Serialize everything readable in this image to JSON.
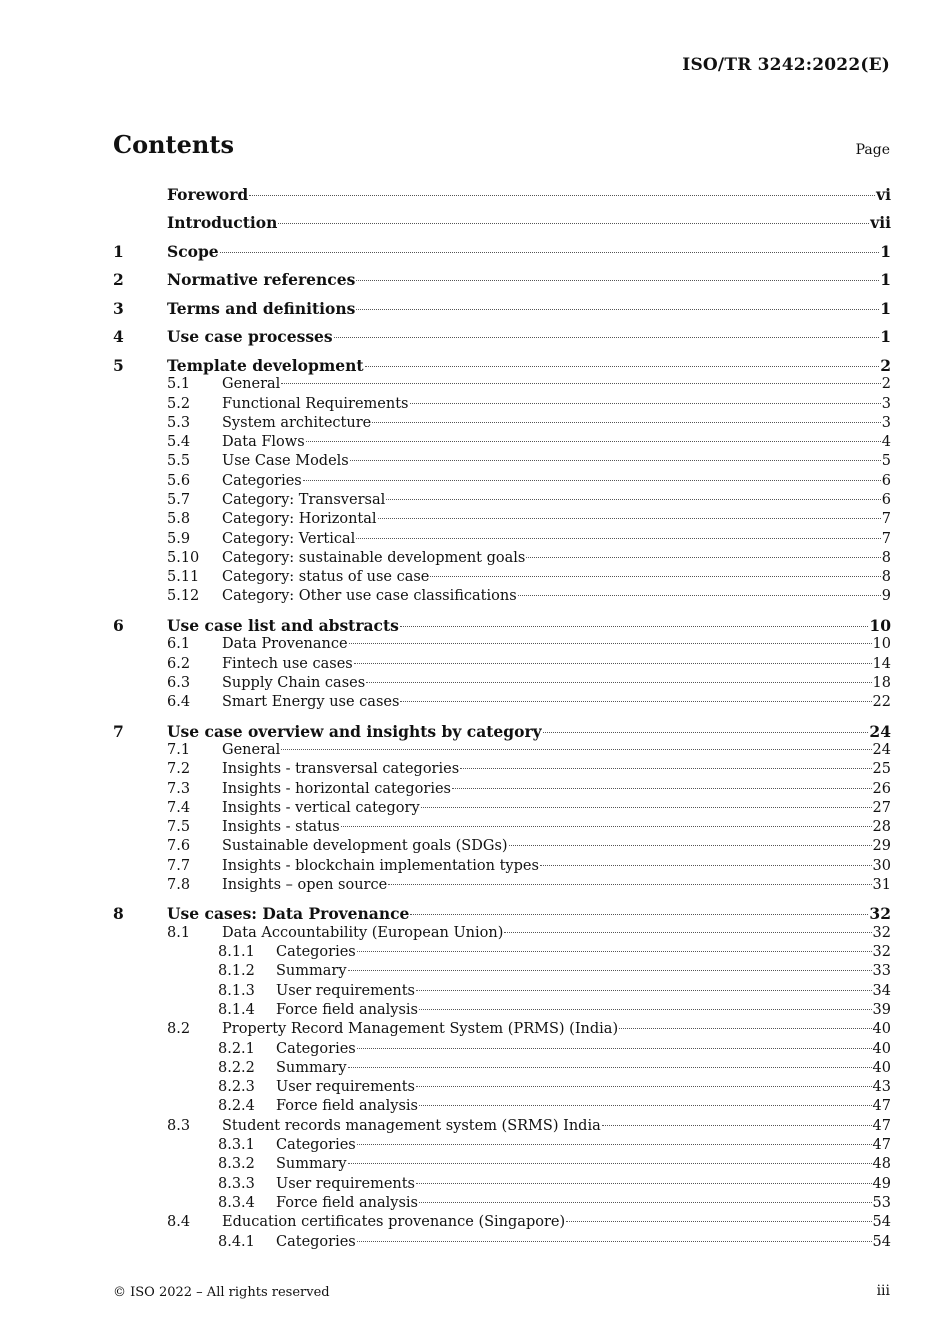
{
  "header": {
    "doc_id": "ISO/TR 3242:2022(E)"
  },
  "contents": {
    "title": "Contents",
    "page_label": "Page",
    "entries": [
      {
        "level": 0,
        "num": "",
        "title": "Foreword",
        "page": "vi"
      },
      {
        "level": 0,
        "num": "",
        "title": "Introduction",
        "page": "vii"
      },
      {
        "level": 0,
        "num": "1",
        "title": "Scope",
        "page": "1"
      },
      {
        "level": 0,
        "num": "2",
        "title": "Normative references",
        "page": "1"
      },
      {
        "level": 0,
        "num": "3",
        "title": "Terms and definitions",
        "page": "1"
      },
      {
        "level": 0,
        "num": "4",
        "title": "Use case processes",
        "page": "1"
      },
      {
        "level": 0,
        "num": "5",
        "title": "Template development",
        "page": "2"
      },
      {
        "level": 1,
        "num": "5.1",
        "title": "General",
        "page": "2"
      },
      {
        "level": 1,
        "num": "5.2",
        "title": "Functional Requirements",
        "page": "3"
      },
      {
        "level": 1,
        "num": "5.3",
        "title": "System architecture",
        "page": "3"
      },
      {
        "level": 1,
        "num": "5.4",
        "title": "Data Flows",
        "page": "4"
      },
      {
        "level": 1,
        "num": "5.5",
        "title": "Use Case Models",
        "page": "5"
      },
      {
        "level": 1,
        "num": "5.6",
        "title": "Categories",
        "page": "6"
      },
      {
        "level": 1,
        "num": "5.7",
        "title": "Category: Transversal",
        "page": "6"
      },
      {
        "level": 1,
        "num": "5.8",
        "title": "Category: Horizontal",
        "page": "7"
      },
      {
        "level": 1,
        "num": "5.9",
        "title": "Category: Vertical",
        "page": "7"
      },
      {
        "level": 1,
        "num": "5.10",
        "title": "Category: sustainable development goals",
        "page": "8"
      },
      {
        "level": 1,
        "num": "5.11",
        "title": "Category: status of use case",
        "page": "8"
      },
      {
        "level": 1,
        "num": "5.12",
        "title": "Category: Other use case classifications",
        "page": "9"
      },
      {
        "level": 0,
        "num": "6",
        "title": "Use case list and abstracts",
        "page": "10"
      },
      {
        "level": 1,
        "num": "6.1",
        "title": "Data Provenance",
        "page": "10"
      },
      {
        "level": 1,
        "num": "6.2",
        "title": "Fintech use cases",
        "page": "14"
      },
      {
        "level": 1,
        "num": "6.3",
        "title": "Supply Chain cases",
        "page": "18"
      },
      {
        "level": 1,
        "num": "6.4",
        "title": "Smart Energy use cases",
        "page": "22"
      },
      {
        "level": 0,
        "num": "7",
        "title": "Use case overview and insights by category",
        "page": "24"
      },
      {
        "level": 1,
        "num": "7.1",
        "title": "General",
        "page": "24"
      },
      {
        "level": 1,
        "num": "7.2",
        "title": "Insights - transversal categories",
        "page": "25"
      },
      {
        "level": 1,
        "num": "7.3",
        "title": "Insights - horizontal categories",
        "page": "26"
      },
      {
        "level": 1,
        "num": "7.4",
        "title": "Insights - vertical category",
        "page": "27"
      },
      {
        "level": 1,
        "num": "7.5",
        "title": "Insights - status",
        "page": "28"
      },
      {
        "level": 1,
        "num": "7.6",
        "title": "Sustainable development goals (SDGs)",
        "page": "29"
      },
      {
        "level": 1,
        "num": "7.7",
        "title": "Insights - blockchain implementation types",
        "page": "30"
      },
      {
        "level": 1,
        "num": "7.8",
        "title": "Insights – open source",
        "page": "31"
      },
      {
        "level": 0,
        "num": "8",
        "title": "Use cases: Data Provenance",
        "page": "32"
      },
      {
        "level": 1,
        "num": "8.1",
        "title": "Data Accountability (European Union)",
        "page": "32"
      },
      {
        "level": 2,
        "num": "8.1.1",
        "title": "Categories",
        "page": "32"
      },
      {
        "level": 2,
        "num": "8.1.2",
        "title": "Summary",
        "page": "33"
      },
      {
        "level": 2,
        "num": "8.1.3",
        "title": "User requirements",
        "page": "34"
      },
      {
        "level": 2,
        "num": "8.1.4",
        "title": "Force field analysis",
        "page": "39"
      },
      {
        "level": 1,
        "num": "8.2",
        "title": "Property Record Management System (PRMS) (India)",
        "page": "40"
      },
      {
        "level": 2,
        "num": "8.2.1",
        "title": "Categories",
        "page": "40"
      },
      {
        "level": 2,
        "num": "8.2.2",
        "title": "Summary",
        "page": "40"
      },
      {
        "level": 2,
        "num": "8.2.3",
        "title": "User requirements",
        "page": "43"
      },
      {
        "level": 2,
        "num": "8.2.4",
        "title": "Force field analysis",
        "page": "47"
      },
      {
        "level": 1,
        "num": "8.3",
        "title": "Student records management system (SRMS) India",
        "page": "47"
      },
      {
        "level": 2,
        "num": "8.3.1",
        "title": "Categories",
        "page": "47"
      },
      {
        "level": 2,
        "num": "8.3.2",
        "title": "Summary",
        "page": "48"
      },
      {
        "level": 2,
        "num": "8.3.3",
        "title": "User requirements",
        "page": "49"
      },
      {
        "level": 2,
        "num": "8.3.4",
        "title": "Force field analysis",
        "page": "53"
      },
      {
        "level": 1,
        "num": "8.4",
        "title": "Education certificates provenance (Singapore)",
        "page": "54"
      },
      {
        "level": 2,
        "num": "8.4.1",
        "title": "Categories",
        "page": "54"
      }
    ]
  },
  "footer": {
    "copyright": "© ISO 2022 – All rights reserved",
    "page_number": "iii"
  }
}
